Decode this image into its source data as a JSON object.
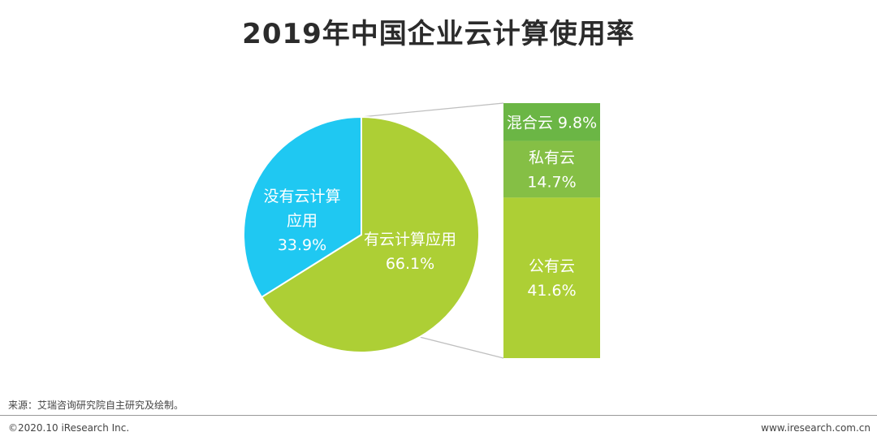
{
  "title": "2019年中国企业云计算使用率",
  "source": "来源：艾瑞咨询研究院自主研究及绘制。",
  "footer": {
    "copyright": "©2020.10 iResearch Inc.",
    "website": "www.iresearch.com.cn"
  },
  "colors": {
    "no_cloud": "#1FC8F2",
    "cloud": "#ADCF35",
    "hybrid": "#6BB645",
    "private": "#85BF45",
    "public": "#ADCF35",
    "connector": "#bfbfbf"
  },
  "chart_data": [
    {
      "type": "pie",
      "slices": [
        {
          "label_line1": "没有云计算",
          "label_line2": "应用",
          "value": 33.9,
          "value_label": "33.9%"
        },
        {
          "label_line1": "有云计算应用",
          "label_line2": "",
          "value": 66.1,
          "value_label": "66.1%"
        }
      ]
    },
    {
      "type": "bar",
      "stacked": true,
      "segments": [
        {
          "label": "混合云",
          "value": 9.8,
          "value_label": "9.8%"
        },
        {
          "label": "私有云",
          "value": 14.7,
          "value_label": "14.7%"
        },
        {
          "label": "公有云",
          "value": 41.6,
          "value_label": "41.6%"
        }
      ]
    }
  ]
}
